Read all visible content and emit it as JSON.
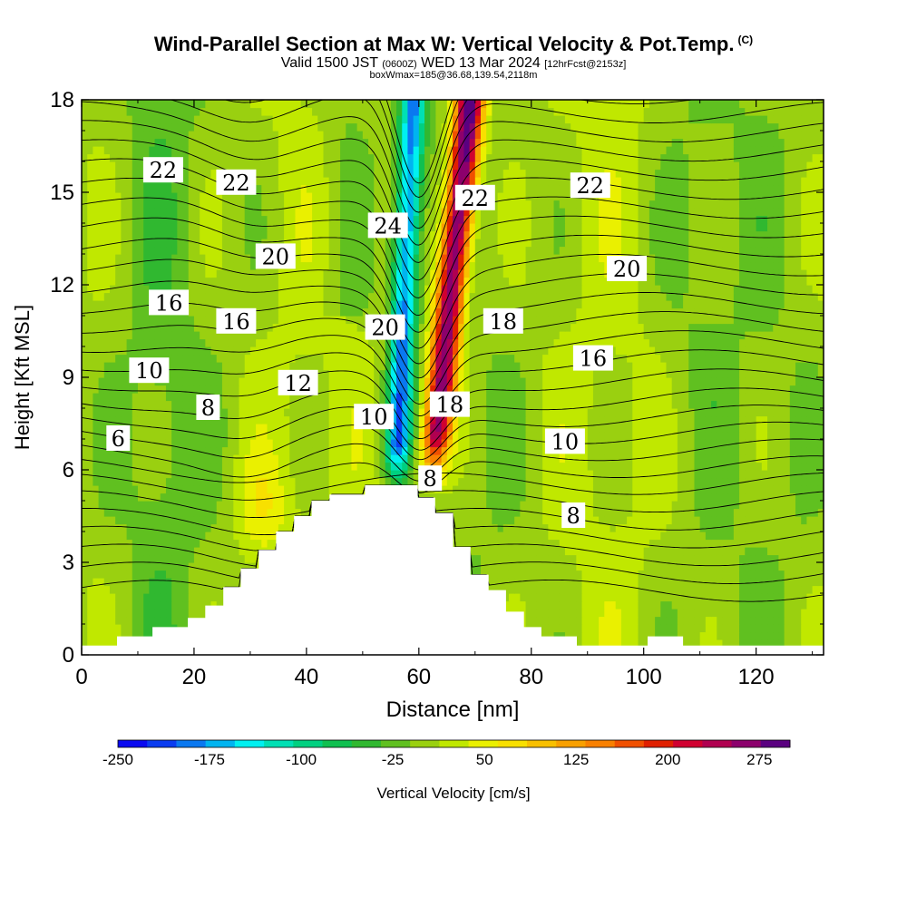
{
  "chart_data": {
    "type": "heatmap",
    "title": "Wind-Parallel Section at Max W: Vertical Velocity & Pot.Temp.",
    "title_mark": "(C)",
    "subtitle_main": "Valid 1500 JST",
    "subtitle_z": "(0600Z)",
    "subtitle_date": "WED 13 Mar 2024",
    "subtitle_fcst": "[12hrFcst@2153z]",
    "subsubtitle": "boxWmax=185@36.68,139.54,2118m",
    "xlabel": "Distance [nm]",
    "ylabel": "Height [Kft MSL]",
    "xlim": [
      0,
      132
    ],
    "ylim": [
      0,
      18
    ],
    "xticks": [
      "0",
      "20",
      "40",
      "60",
      "80",
      "100",
      "120"
    ],
    "yticks": [
      "0",
      "3",
      "6",
      "9",
      "12",
      "15",
      "18"
    ],
    "colorbar": {
      "label": "Vertical Velocity [cm/s]",
      "tick_labels": [
        "-250",
        "-175",
        "-100",
        "-25",
        "50",
        "125",
        "200",
        "275"
      ],
      "tick_values": [
        -250,
        -175,
        -100,
        -25,
        50,
        125,
        200,
        275
      ],
      "range": [
        -250,
        300
      ],
      "colors": [
        "#0a0af0",
        "#0a3cf0",
        "#0a78f0",
        "#00b4f0",
        "#00f0f0",
        "#00e0b4",
        "#00d080",
        "#10c050",
        "#30b830",
        "#60c020",
        "#9ad010",
        "#c0e800",
        "#eaf000",
        "#f8e000",
        "#f8c000",
        "#f8a000",
        "#f88000",
        "#f05000",
        "#e02000",
        "#d00030",
        "#b00050",
        "#8c006c",
        "#5a0080"
      ]
    },
    "field_description": "Vertical velocity mostly -25 to 50 cm/s; strong updraft up to ~300 cm/s near x=64-70 nm above 6 kft; downdraft down to ~-150 cm/s near x=56-61 nm",
    "contour_labels": [
      {
        "text": "22",
        "x": 14.5,
        "y": 15.7
      },
      {
        "text": "22",
        "x": 27.5,
        "y": 15.3
      },
      {
        "text": "24",
        "x": 54.5,
        "y": 13.9
      },
      {
        "text": "22",
        "x": 70.0,
        "y": 14.8
      },
      {
        "text": "22",
        "x": 90.5,
        "y": 15.2
      },
      {
        "text": "20",
        "x": 34.5,
        "y": 12.9
      },
      {
        "text": "20",
        "x": 97.0,
        "y": 12.5
      },
      {
        "text": "16",
        "x": 15.5,
        "y": 11.4
      },
      {
        "text": "16",
        "x": 27.5,
        "y": 10.8
      },
      {
        "text": "20",
        "x": 54.0,
        "y": 10.6
      },
      {
        "text": "18",
        "x": 75.0,
        "y": 10.8
      },
      {
        "text": "16",
        "x": 91.0,
        "y": 9.6
      },
      {
        "text": "10",
        "x": 12.0,
        "y": 9.2
      },
      {
        "text": "12",
        "x": 38.5,
        "y": 8.8
      },
      {
        "text": "8",
        "x": 22.5,
        "y": 8.0
      },
      {
        "text": "18",
        "x": 65.5,
        "y": 8.1
      },
      {
        "text": "10",
        "x": 52.0,
        "y": 7.7
      },
      {
        "text": "10",
        "x": 86.0,
        "y": 6.9
      },
      {
        "text": "6",
        "x": 6.5,
        "y": 7.0
      },
      {
        "text": "8",
        "x": 62.0,
        "y": 5.7
      },
      {
        "text": "8",
        "x": 87.5,
        "y": 4.5
      }
    ]
  }
}
